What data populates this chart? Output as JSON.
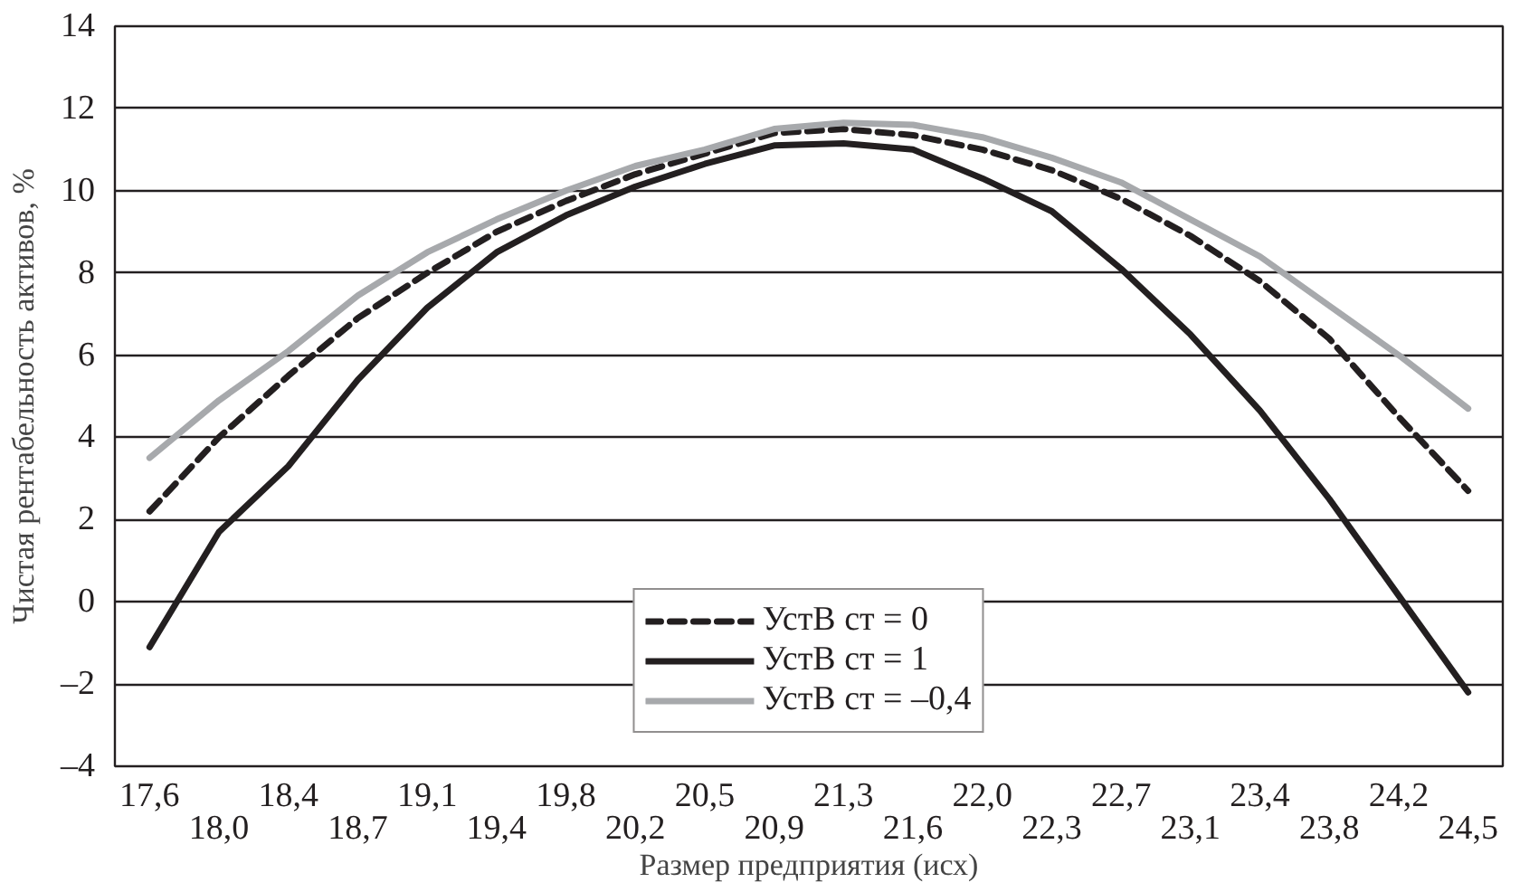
{
  "chart_data": {
    "type": "line",
    "xlabel": "Размер предприятия (исх)",
    "ylabel": "Чистая рентабельность активов, %",
    "categories": [
      "17,6",
      "18,0",
      "18,4",
      "18,7",
      "19,1",
      "19,4",
      "19,8",
      "20,2",
      "20,5",
      "20,9",
      "21,3",
      "21,6",
      "22,0",
      "22,3",
      "22,7",
      "23,1",
      "23,4",
      "23,8",
      "24,2",
      "24,5"
    ],
    "series": [
      {
        "name": "УстВ ст = 0",
        "color": "#231f20",
        "line_style": "dashed",
        "values": [
          2.2,
          4.0,
          5.5,
          6.9,
          8.0,
          9.0,
          9.75,
          10.4,
          10.9,
          11.4,
          11.5,
          11.35,
          11.0,
          10.5,
          9.8,
          8.9,
          7.8,
          6.4,
          4.5,
          2.7
        ]
      },
      {
        "name": "УстВ ст = 1",
        "color": "#231f20",
        "line_style": "solid",
        "values": [
          -1.1,
          1.7,
          3.3,
          5.4,
          7.15,
          8.5,
          9.4,
          10.1,
          10.65,
          11.1,
          11.15,
          11.0,
          10.3,
          9.5,
          8.1,
          6.5,
          4.65,
          2.5,
          0.15,
          -2.2
        ]
      },
      {
        "name": "УстВ ст = –0,4",
        "color": "#a7a9ac",
        "line_style": "solid",
        "values": [
          3.5,
          4.9,
          6.1,
          7.45,
          8.5,
          9.3,
          10.0,
          10.6,
          11.0,
          11.5,
          11.65,
          11.6,
          11.3,
          10.8,
          10.2,
          9.3,
          8.4,
          7.2,
          6.0,
          4.7
        ]
      }
    ],
    "ylim": [
      -4,
      14
    ],
    "yticks": [
      {
        "value": -4,
        "label": "–4"
      },
      {
        "value": -2,
        "label": "–2"
      },
      0,
      2,
      4,
      6,
      8,
      10,
      12,
      14
    ],
    "grid": "y",
    "legend": "bottom",
    "marker": "none"
  }
}
